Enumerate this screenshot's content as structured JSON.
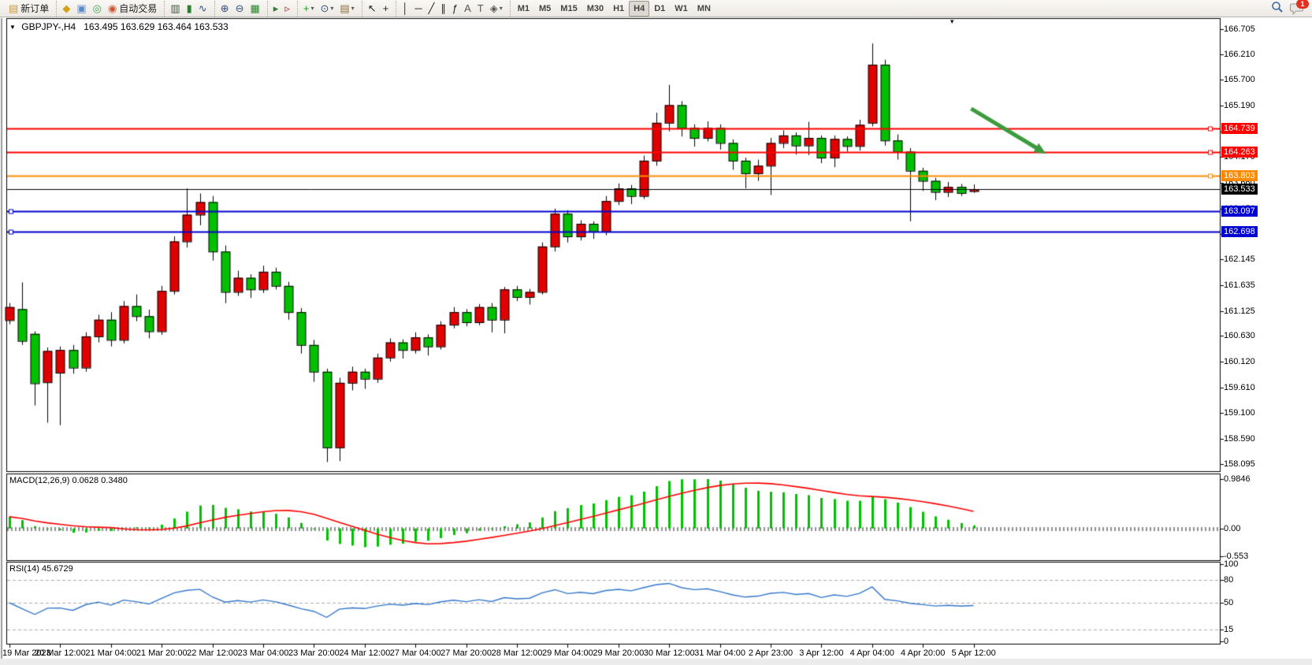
{
  "window": {
    "title_symbol": "GBPJPY-,H4",
    "title_ohlc": "163.495 163.629 163.464 163.533"
  },
  "notifications": {
    "count": "1"
  },
  "toolbar": {
    "groups": [
      {
        "items": [
          {
            "name": "new-order-button",
            "glyph": "▤",
            "color": "#c89b3c",
            "label": "新订单"
          }
        ]
      },
      {
        "items": [
          {
            "name": "chart-window-button",
            "glyph": "◆",
            "color": "#d4a017"
          },
          {
            "name": "profiles-button",
            "glyph": "▣",
            "color": "#5b87c5"
          },
          {
            "name": "market-signal-button",
            "glyph": "◎",
            "color": "#3aa055"
          },
          {
            "name": "autotrading-button",
            "glyph": "◉",
            "color": "#cc5533",
            "label": "自动交易"
          }
        ]
      },
      {
        "items": [
          {
            "name": "bar-chart-button",
            "glyph": "▥",
            "color": "#355e35"
          },
          {
            "name": "candlestick-chart-button",
            "glyph": "▮",
            "color": "#2e7d32"
          },
          {
            "name": "line-chart-button",
            "glyph": "∿",
            "color": "#2e4f8e"
          }
        ]
      },
      {
        "items": [
          {
            "name": "zoom-in-button",
            "glyph": "⊕",
            "color": "#2f4f7f"
          },
          {
            "name": "zoom-out-button",
            "glyph": "⊖",
            "color": "#2f4f7f"
          },
          {
            "name": "tile-windows-button",
            "glyph": "▦",
            "color": "#2e7d32"
          }
        ]
      },
      {
        "items": [
          {
            "name": "auto-scroll-button",
            "glyph": "▸",
            "color": "#2e7d32"
          },
          {
            "name": "chart-shift-button",
            "glyph": "▹",
            "color": "#aa3333"
          }
        ]
      },
      {
        "items": [
          {
            "name": "indicators-button",
            "glyph": "+",
            "color": "#1d9a1d",
            "arrow": true
          },
          {
            "name": "periods-button",
            "glyph": "⊙",
            "color": "#2f4f7f",
            "arrow": true
          },
          {
            "name": "templates-button",
            "glyph": "▤",
            "color": "#8a6d3b",
            "arrow": true
          }
        ]
      },
      {
        "items": [
          {
            "name": "cursor-button",
            "glyph": "↖",
            "color": "#222222"
          },
          {
            "name": "crosshair-button",
            "glyph": "+",
            "color": "#222222"
          }
        ]
      },
      {
        "items": [
          {
            "name": "vertical-line-button",
            "glyph": "│",
            "color": "#222222"
          },
          {
            "name": "horizontal-line-button",
            "glyph": "─",
            "color": "#222222"
          },
          {
            "name": "trendline-button",
            "glyph": "╱",
            "color": "#222222"
          },
          {
            "name": "equidistant-channel-button",
            "glyph": "∥",
            "color": "#222222"
          },
          {
            "name": "fibonacci-button",
            "glyph": "ƒ",
            "color": "#222222"
          },
          {
            "name": "text-button",
            "glyph": "A",
            "color": "#555555"
          },
          {
            "name": "text-label-button",
            "glyph": "T",
            "color": "#555555"
          },
          {
            "name": "arrows-button",
            "glyph": "◈",
            "color": "#555555",
            "arrow": true
          }
        ]
      },
      {
        "items": [
          {
            "name": "tf-m1-button",
            "tf": "M1"
          },
          {
            "name": "tf-m5-button",
            "tf": "M5"
          },
          {
            "name": "tf-m15-button",
            "tf": "M15"
          },
          {
            "name": "tf-m30-button",
            "tf": "M30"
          },
          {
            "name": "tf-h1-button",
            "tf": "H1"
          },
          {
            "name": "tf-h4-button",
            "tf": "H4",
            "active": true
          },
          {
            "name": "tf-d1-button",
            "tf": "D1"
          },
          {
            "name": "tf-w1-button",
            "tf": "W1"
          },
          {
            "name": "tf-mn-button",
            "tf": "MN"
          }
        ]
      }
    ]
  },
  "chart_data": {
    "type": "candlestick",
    "symbol": "GBPJPY-",
    "period": "H4",
    "current_bar": {
      "open": 163.495,
      "high": 163.629,
      "low": 163.464,
      "close": 163.533
    },
    "colors": {
      "bull": "#e00000",
      "bear": "#00c000",
      "wick": "#000000",
      "macd_hist": "#00c000",
      "macd_signal": "#ff0000",
      "rsi_line": "#3377cc",
      "level_red": "#ff0000",
      "level_orange": "#ff8a00",
      "level_blue": "#0000d0",
      "current_price": "#000000",
      "arrow": "#3c9b3c"
    },
    "candles": [
      [
        160.94,
        161.28,
        160.86,
        161.2
      ],
      [
        161.16,
        161.69,
        160.45,
        160.53
      ],
      [
        160.67,
        160.72,
        159.25,
        159.69
      ],
      [
        159.71,
        160.4,
        158.91,
        160.33
      ],
      [
        159.9,
        160.42,
        158.86,
        160.35
      ],
      [
        160.35,
        160.45,
        159.88,
        160.0
      ],
      [
        160.0,
        160.7,
        159.92,
        160.62
      ],
      [
        160.62,
        161.05,
        160.5,
        160.95
      ],
      [
        160.95,
        161.1,
        160.42,
        160.55
      ],
      [
        160.55,
        161.32,
        160.48,
        161.22
      ],
      [
        161.22,
        161.45,
        160.92,
        161.02
      ],
      [
        161.02,
        161.15,
        160.58,
        160.72
      ],
      [
        160.72,
        161.62,
        160.65,
        161.52
      ],
      [
        161.52,
        162.6,
        161.45,
        162.5
      ],
      [
        162.5,
        163.55,
        162.38,
        163.03
      ],
      [
        163.03,
        163.45,
        162.82,
        163.28
      ],
      [
        163.28,
        163.4,
        162.12,
        162.3
      ],
      [
        162.3,
        162.42,
        161.28,
        161.5
      ],
      [
        161.5,
        161.92,
        161.42,
        161.78
      ],
      [
        161.78,
        161.85,
        161.38,
        161.55
      ],
      [
        161.55,
        162.02,
        161.48,
        161.9
      ],
      [
        161.9,
        161.98,
        161.55,
        161.62
      ],
      [
        161.62,
        161.7,
        160.95,
        161.1
      ],
      [
        161.1,
        161.18,
        160.28,
        160.45
      ],
      [
        160.45,
        160.55,
        159.72,
        159.92
      ],
      [
        159.92,
        159.98,
        158.13,
        158.42
      ],
      [
        158.42,
        159.8,
        158.15,
        159.7
      ],
      [
        159.7,
        160.02,
        159.55,
        159.92
      ],
      [
        159.92,
        159.98,
        159.58,
        159.78
      ],
      [
        159.78,
        160.28,
        159.7,
        160.2
      ],
      [
        160.2,
        160.58,
        160.12,
        160.5
      ],
      [
        160.5,
        160.56,
        160.18,
        160.35
      ],
      [
        160.35,
        160.7,
        160.28,
        160.6
      ],
      [
        160.6,
        160.66,
        160.24,
        160.42
      ],
      [
        160.42,
        160.92,
        160.36,
        160.85
      ],
      [
        160.85,
        161.2,
        160.78,
        161.1
      ],
      [
        161.1,
        161.16,
        160.82,
        160.9
      ],
      [
        160.9,
        161.26,
        160.84,
        161.2
      ],
      [
        161.2,
        161.28,
        160.7,
        160.95
      ],
      [
        160.95,
        161.6,
        160.68,
        161.55
      ],
      [
        161.55,
        161.62,
        161.32,
        161.4
      ],
      [
        161.4,
        161.56,
        161.25,
        161.5
      ],
      [
        161.5,
        162.48,
        161.45,
        162.4
      ],
      [
        162.4,
        163.15,
        162.3,
        163.05
      ],
      [
        163.05,
        163.12,
        162.48,
        162.6
      ],
      [
        162.6,
        162.92,
        162.52,
        162.85
      ],
      [
        162.85,
        162.9,
        162.55,
        162.7
      ],
      [
        162.7,
        163.4,
        162.62,
        163.3
      ],
      [
        163.3,
        163.65,
        163.22,
        163.55
      ],
      [
        163.55,
        163.62,
        163.24,
        163.4
      ],
      [
        163.4,
        164.2,
        163.34,
        164.1
      ],
      [
        164.1,
        165.05,
        164.0,
        164.85
      ],
      [
        164.85,
        165.6,
        164.68,
        165.2
      ],
      [
        165.2,
        165.28,
        164.58,
        164.75
      ],
      [
        164.75,
        164.82,
        164.38,
        164.55
      ],
      [
        164.55,
        164.88,
        164.48,
        164.75
      ],
      [
        164.75,
        164.82,
        164.32,
        164.45
      ],
      [
        164.45,
        164.52,
        163.92,
        164.1
      ],
      [
        164.1,
        164.16,
        163.55,
        163.85
      ],
      [
        163.85,
        164.12,
        163.7,
        164.0
      ],
      [
        164.0,
        164.55,
        163.42,
        164.45
      ],
      [
        164.45,
        164.7,
        164.35,
        164.6
      ],
      [
        164.6,
        164.66,
        164.22,
        164.4
      ],
      [
        164.4,
        164.87,
        164.21,
        164.55
      ],
      [
        164.55,
        164.6,
        164.05,
        164.16
      ],
      [
        164.16,
        164.6,
        163.97,
        164.53
      ],
      [
        164.53,
        164.58,
        164.28,
        164.39
      ],
      [
        164.39,
        164.91,
        164.3,
        164.81
      ],
      [
        164.85,
        166.42,
        164.78,
        166.0
      ],
      [
        166.0,
        166.1,
        164.4,
        164.5
      ],
      [
        164.5,
        164.62,
        164.12,
        164.28
      ],
      [
        164.28,
        164.35,
        162.9,
        163.9
      ],
      [
        163.9,
        163.96,
        163.5,
        163.7
      ],
      [
        163.7,
        163.76,
        163.32,
        163.48
      ],
      [
        163.48,
        163.68,
        163.38,
        163.58
      ],
      [
        163.58,
        163.64,
        163.4,
        163.46
      ],
      [
        163.495,
        163.629,
        163.464,
        163.533
      ]
    ],
    "label_every": 4,
    "time_labels": [
      "19 Mar 2023",
      "20 Mar 12:00",
      "21 Mar 04:00",
      "21 Mar 20:00",
      "22 Mar 12:00",
      "23 Mar 04:00",
      "23 Mar 20:00",
      "24 Mar 12:00",
      "27 Mar 04:00",
      "27 Mar 20:00",
      "28 Mar 12:00",
      "29 Mar 04:00",
      "29 Mar 20:00",
      "30 Mar 12:00",
      "31 Mar 04:00",
      "2 Apr 23:00",
      "3 Apr 12:00",
      "4 Apr 04:00",
      "4 Apr 20:00",
      "5 Apr 12:00"
    ],
    "price_axis_labels": [
      "166.705",
      "166.210",
      "165.700",
      "165.190",
      "164.680",
      "164.170",
      "163.660",
      "163.150",
      "162.655",
      "162.145",
      "161.635",
      "161.125",
      "160.630",
      "160.120",
      "159.610",
      "159.100",
      "158.590",
      "158.095"
    ],
    "levels": [
      {
        "price": 164.739,
        "label": "164.739",
        "color": "#ff0000",
        "width": 2,
        "anchor": "right"
      },
      {
        "price": 164.263,
        "label": "164.263",
        "color": "#ff0000",
        "width": 2,
        "anchor": "right"
      },
      {
        "price": 163.803,
        "label": "163.803",
        "color": "#ff8a00",
        "width": 2,
        "anchor": "right"
      },
      {
        "price": 163.533,
        "label": "163.533",
        "color": "#000000",
        "width": 1,
        "role": "current-price"
      },
      {
        "price": 163.097,
        "label": "163.097",
        "color": "#0000d0",
        "width": 2,
        "anchor": "left"
      },
      {
        "price": 162.698,
        "label": "162.698",
        "color": "#0000d0",
        "width": 2,
        "anchor": "left"
      }
    ],
    "indicators": {
      "macd": {
        "full": "MACD(12,26,9) 0.0628 0.3480",
        "params": [
          12,
          26,
          9
        ],
        "main_value": "0.0628",
        "signal_value": "0.3480",
        "axis_labels": [
          {
            "text": "0.9846",
            "value": 0.9846
          },
          {
            "text": "0.00",
            "value": 0.0
          },
          {
            "text": "-0.553",
            "value": -0.553
          }
        ]
      },
      "rsi": {
        "full": "RSI(14) 45.6729",
        "period": 14,
        "value": "45.6729",
        "axis_labels": [
          {
            "text": "100",
            "value": 100
          },
          {
            "text": "80",
            "value": 80
          },
          {
            "text": "50",
            "value": 50
          },
          {
            "text": "15",
            "value": 15
          },
          {
            "text": "0",
            "value": 0
          }
        ],
        "levels": [
          80,
          50,
          15
        ]
      }
    },
    "annotations": {
      "arrow": {
        "from": {
          "bar": 75.8,
          "price": 165.13
        },
        "to": {
          "bar": 81.7,
          "price": 164.24
        },
        "color": "#3c9b3c"
      },
      "shift_marker_bar": 74.3
    }
  }
}
